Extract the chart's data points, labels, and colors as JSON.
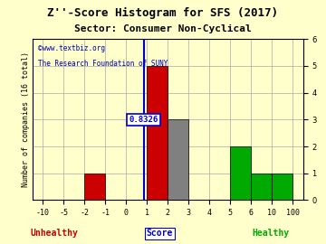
{
  "title": "Z''-Score Histogram for SFS (2017)",
  "subtitle": "Sector: Consumer Non-Cyclical",
  "watermark1": "©www.textbiz.org",
  "watermark2": "The Research Foundation of SUNY",
  "xlabel": "Score",
  "ylabel": "Number of companies (16 total)",
  "score_line_value": 0.8326,
  "score_label": "0.8326",
  "ylim": [
    0,
    6
  ],
  "xtick_values": [
    -10,
    -5,
    -2,
    -1,
    0,
    1,
    2,
    3,
    4,
    5,
    6,
    10,
    100
  ],
  "xtick_labels": [
    "-10",
    "-5",
    "-2",
    "-1",
    "0",
    "1",
    "2",
    "3",
    "4",
    "5",
    "6",
    "10",
    "100"
  ],
  "bars": [
    {
      "from_val": -2,
      "to_val": -1,
      "height": 1,
      "color": "#cc0000"
    },
    {
      "from_val": 1,
      "to_val": 2,
      "height": 5,
      "color": "#cc0000"
    },
    {
      "from_val": 2,
      "to_val": 3,
      "height": 3,
      "color": "#808080"
    },
    {
      "from_val": 5,
      "to_val": 6,
      "height": 2,
      "color": "#00aa00"
    },
    {
      "from_val": 6,
      "to_val": 10,
      "height": 1,
      "color": "#00aa00"
    },
    {
      "from_val": 10,
      "to_val": 100,
      "height": 1,
      "color": "#00aa00"
    }
  ],
  "unhealthy_label": "Unhealthy",
  "healthy_label": "Healthy",
  "unhealthy_color": "#cc0000",
  "healthy_color": "#00aa00",
  "xlabel_color": "#0000cc",
  "background_color": "#ffffcc",
  "grid_color": "#aaaaaa",
  "title_fontsize": 9,
  "subtitle_fontsize": 8,
  "tick_fontsize": 6,
  "score_line_color": "#0000cc",
  "score_label_color": "#0000cc",
  "score_box_facecolor": "#ffffff",
  "score_box_edgecolor": "#0000cc",
  "watermark_color": "#0000aa",
  "ylabel_fontsize": 6
}
